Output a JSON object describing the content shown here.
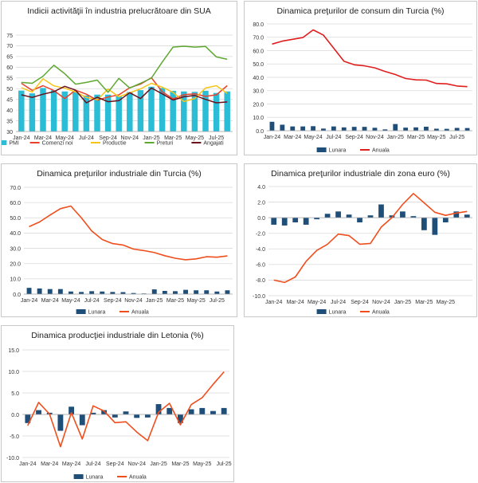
{
  "chart_data": [
    {
      "type": "bar+line",
      "title": "Indicii activităţii în industria prelucrătoare din SUA",
      "categories": [
        "Jan-24",
        "Feb-24",
        "Mar-24",
        "Apr-24",
        "May-24",
        "Jun-24",
        "Jul-24",
        "Aug-24",
        "Sep-24",
        "Oct-24",
        "Nov-24",
        "Dec-24",
        "Jan-25",
        "Feb-25",
        "Mar-25",
        "Apr-25",
        "May-25",
        "Jun-25",
        "Jul-25",
        "Aug-25"
      ],
      "xticks": [
        "Jan-24",
        "Mar-24",
        "May-24",
        "Jul-24",
        "Sep-24",
        "Nov-24",
        "Jan-25",
        "Mar-25",
        "May-25",
        "Jul-25"
      ],
      "ylim": [
        30,
        75
      ],
      "yticks": [
        30,
        35,
        40,
        45,
        50,
        55,
        60,
        65,
        70,
        75
      ],
      "bar_baseline": 30,
      "bars": [
        {
          "name": "PMI",
          "color": "#2bbcd6",
          "values": [
            49.1,
            47.8,
            50.3,
            49.2,
            48.7,
            48.5,
            46.8,
            47.2,
            47.2,
            46.5,
            48.4,
            49.3,
            50.9,
            50.3,
            49.0,
            48.7,
            48.5,
            49.0,
            48.0,
            48.7
          ]
        }
      ],
      "series": [
        {
          "name": "Comenzi noi",
          "color": "#e8412c",
          "values": [
            52.5,
            49.2,
            51.4,
            49.1,
            45.4,
            49.3,
            47.4,
            44.6,
            46.1,
            47.1,
            50.4,
            52.1,
            55.1,
            48.6,
            45.2,
            47.2,
            47.6,
            46.4,
            47.1,
            51.4
          ]
        },
        {
          "name": "Productie",
          "color": "#f5c518",
          "values": [
            50.4,
            48.4,
            54.6,
            51.3,
            50.2,
            48.5,
            45.9,
            44.8,
            49.8,
            46.2,
            48.1,
            49.9,
            52.5,
            50.7,
            48.3,
            44.0,
            45.4,
            50.3,
            51.4,
            47.8
          ]
        },
        {
          "name": "Preturi",
          "color": "#5ea832",
          "values": [
            52.9,
            52.5,
            55.8,
            60.9,
            57.0,
            52.1,
            52.9,
            54.0,
            48.3,
            54.8,
            50.3,
            52.5,
            54.9,
            62.4,
            69.4,
            69.8,
            69.4,
            69.7,
            64.8,
            63.7
          ]
        },
        {
          "name": "Angajati",
          "color": "#6b0f1a",
          "values": [
            47.1,
            45.9,
            47.4,
            48.6,
            51.1,
            49.3,
            43.4,
            46.0,
            43.9,
            44.4,
            48.1,
            45.4,
            50.3,
            47.6,
            44.7,
            46.2,
            46.8,
            45.0,
            43.4,
            43.8
          ]
        }
      ]
    },
    {
      "type": "bar+line",
      "title": "Dinamica preţurilor de consum din Turcia (%)",
      "categories": [
        "Jan-24",
        "Feb-24",
        "Mar-24",
        "Apr-24",
        "May-24",
        "Jun-24",
        "Jul-24",
        "Aug-24",
        "Sep-24",
        "Oct-24",
        "Nov-24",
        "Dec-24",
        "Jan-25",
        "Feb-25",
        "Mar-25",
        "Apr-25",
        "May-25",
        "Jun-25",
        "Jul-25",
        "Aug-25"
      ],
      "xticks": [
        "Jan-24",
        "Mar-24",
        "May-24",
        "Jul-24",
        "Sep-24",
        "Nov-24",
        "Jan-25",
        "Mar-25",
        "May-25",
        "Jul-25"
      ],
      "ylim": [
        0,
        80
      ],
      "yticks": [
        0.0,
        10.0,
        20.0,
        30.0,
        40.0,
        50.0,
        60.0,
        70.0,
        80.0
      ],
      "decimals": 1,
      "bar_baseline": 0,
      "bars": [
        {
          "name": "Lunara",
          "color": "#1f4e79",
          "values": [
            6.7,
            4.5,
            3.2,
            3.2,
            3.4,
            1.6,
            3.2,
            2.5,
            2.9,
            2.9,
            2.2,
            1.0,
            5.0,
            2.3,
            2.5,
            3.0,
            1.5,
            1.4,
            2.1,
            2.0
          ]
        }
      ],
      "series": [
        {
          "name": "Anuala",
          "color": "#e01e1e",
          "values": [
            64.9,
            67.1,
            68.5,
            69.8,
            75.5,
            71.6,
            61.8,
            52.0,
            49.4,
            48.6,
            47.1,
            44.4,
            42.1,
            39.1,
            38.1,
            37.9,
            35.4,
            35.1,
            33.5,
            33.0
          ]
        }
      ]
    },
    {
      "type": "bar+line",
      "title": "Dinamica preţurilor industriale din Turcia (%)",
      "categories": [
        "Jan-24",
        "Feb-24",
        "Mar-24",
        "Apr-24",
        "May-24",
        "Jun-24",
        "Jul-24",
        "Aug-24",
        "Sep-24",
        "Oct-24",
        "Nov-24",
        "Dec-24",
        "Jan-25",
        "Feb-25",
        "Mar-25",
        "Apr-25",
        "May-25",
        "Jun-25",
        "Jul-25",
        "Aug-25"
      ],
      "xticks": [
        "Jan-24",
        "Mar-24",
        "May-24",
        "Jul-24",
        "Sep-24",
        "Nov-24",
        "Jan-25",
        "Mar-25",
        "May-25",
        "Jul-25"
      ],
      "ylim": [
        0,
        70
      ],
      "yticks": [
        0.0,
        10.0,
        20.0,
        30.0,
        40.0,
        50.0,
        60.0,
        70.0
      ],
      "decimals": 1,
      "bar_baseline": 0,
      "bars": [
        {
          "name": "Lunara",
          "color": "#1f4e79",
          "values": [
            4.1,
            3.7,
            3.3,
            3.3,
            1.7,
            1.4,
            1.9,
            1.7,
            1.4,
            1.3,
            0.7,
            0.4,
            3.1,
            2.1,
            1.9,
            2.8,
            2.5,
            2.5,
            1.7,
            2.5
          ]
        }
      ],
      "series": [
        {
          "name": "Anuala",
          "color": "#f04e1c",
          "values": [
            44.2,
            47.3,
            51.8,
            56.0,
            57.7,
            50.1,
            41.4,
            35.8,
            33.1,
            32.2,
            29.5,
            28.5,
            27.2,
            25.2,
            23.5,
            22.5,
            23.1,
            24.5,
            24.2,
            25.0
          ]
        }
      ]
    },
    {
      "type": "bar+line",
      "title": "Dinamica preţurilor industriale din zona euro (%)",
      "categories": [
        "Jan-24",
        "Feb-24",
        "Mar-24",
        "Apr-24",
        "May-24",
        "Jun-24",
        "Jul-24",
        "Aug-24",
        "Sep-24",
        "Oct-24",
        "Nov-24",
        "Dec-24",
        "Jan-25",
        "Feb-25",
        "Mar-25",
        "Apr-25",
        "May-25",
        "Jun-25",
        "Jul-25"
      ],
      "xticks": [
        "Jan-24",
        "Mar-24",
        "May-24",
        "Jul-24",
        "Sep-24",
        "Nov-24",
        "Jan-25",
        "Mar-25",
        "May-25"
      ],
      "ylim": [
        -10,
        4
      ],
      "yticks": [
        -10.0,
        -8.0,
        -6.0,
        -4.0,
        -2.0,
        0.0,
        2.0,
        4.0
      ],
      "decimals": 1,
      "bar_baseline": 0,
      "bars": [
        {
          "name": "Lunara",
          "color": "#1f4e79",
          "values": [
            -0.9,
            -1.0,
            -0.6,
            -0.9,
            -0.2,
            0.5,
            0.8,
            0.4,
            -0.6,
            0.3,
            1.7,
            0.3,
            0.8,
            0.2,
            -1.6,
            -2.2,
            -0.6,
            0.8,
            0.4
          ]
        }
      ],
      "series": [
        {
          "name": "Anuala",
          "color": "#f04e1c",
          "values": [
            -8.0,
            -8.3,
            -7.6,
            -5.6,
            -4.2,
            -3.4,
            -2.1,
            -2.3,
            -3.4,
            -3.3,
            -1.2,
            0.0,
            1.7,
            3.1,
            1.9,
            0.7,
            0.3,
            0.6,
            0.8
          ]
        }
      ]
    },
    {
      "type": "bar+line",
      "title": "Dinamica producţiei industriale din Letonia (%)",
      "categories": [
        "Jan-24",
        "Feb-24",
        "Mar-24",
        "Apr-24",
        "May-24",
        "Jun-24",
        "Jul-24",
        "Aug-24",
        "Sep-24",
        "Oct-24",
        "Nov-24",
        "Dec-24",
        "Jan-25",
        "Feb-25",
        "Mar-25",
        "Apr-25",
        "May-25",
        "Jun-25",
        "Jul-25"
      ],
      "xticks": [
        "Jan-24",
        "Mar-24",
        "May-24",
        "Jul-24",
        "Sep-24",
        "Nov-24",
        "Jan-25",
        "Mar-25",
        "May-25",
        "Jul-25"
      ],
      "ylim": [
        -10,
        15
      ],
      "yticks": [
        -10.0,
        -5.0,
        0.0,
        5.0,
        10.0,
        15.0
      ],
      "decimals": 1,
      "bar_baseline": 0,
      "bars": [
        {
          "name": "Lunara",
          "color": "#1f4e79",
          "values": [
            -2.0,
            1.0,
            0.4,
            -3.8,
            1.8,
            -2.5,
            0.4,
            1.0,
            -0.7,
            0.7,
            -0.8,
            -0.7,
            2.4,
            1.5,
            -2.0,
            1.2,
            1.5,
            0.8,
            1.5
          ]
        }
      ],
      "series": [
        {
          "name": "Anuala",
          "color": "#f04e1c",
          "values": [
            -2.6,
            2.8,
            0.1,
            -7.5,
            0.4,
            -5.7,
            2.0,
            0.8,
            -1.9,
            -1.7,
            -4.1,
            -6.1,
            0.5,
            2.6,
            -2.4,
            2.3,
            3.9,
            7.0,
            9.9
          ]
        }
      ]
    }
  ]
}
